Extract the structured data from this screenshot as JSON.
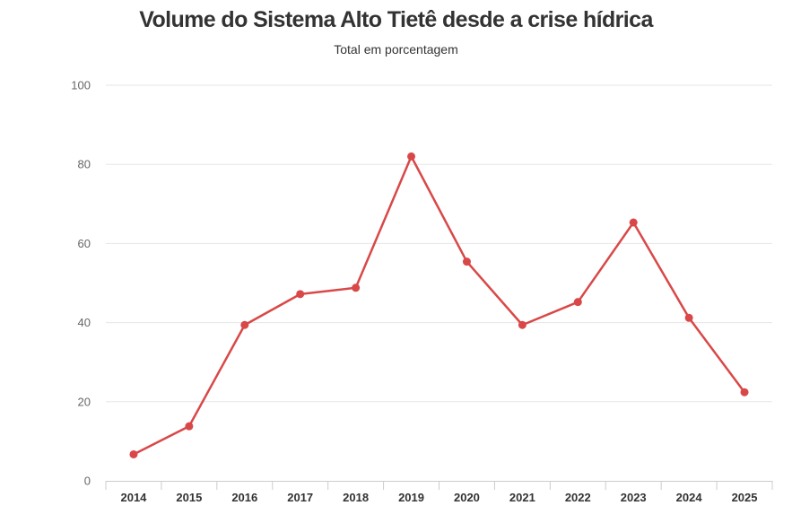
{
  "chart_data": {
    "type": "line",
    "title": "Volume do Sistema Alto Tietê desde a crise hídrica",
    "subtitle": "Total em porcentagem",
    "xlabel": "",
    "ylabel": "",
    "categories": [
      "2014",
      "2015",
      "2016",
      "2017",
      "2018",
      "2019",
      "2020",
      "2021",
      "2022",
      "2023",
      "2024",
      "2025"
    ],
    "series": [
      {
        "values": [
          6.7,
          13.8,
          39.4,
          47.2,
          48.8,
          82.0,
          55.4,
          39.4,
          45.2,
          65.3,
          41.2,
          22.4
        ]
      }
    ],
    "ylim": [
      0,
      100
    ],
    "yticks": [
      "0",
      "20",
      "40",
      "60",
      "80",
      "100"
    ],
    "grid": true,
    "legend": "none",
    "colors": {
      "line": "#d94848",
      "grid": "#e6e6e6",
      "axis": "#cccccc"
    }
  }
}
